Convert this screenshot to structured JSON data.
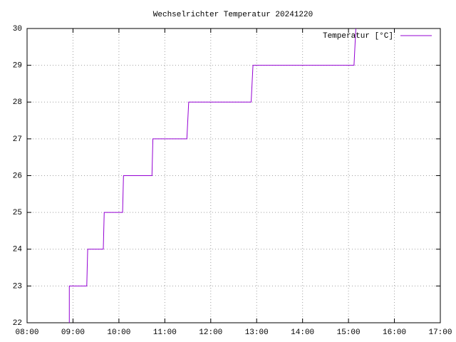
{
  "chart_data": {
    "type": "line",
    "title": "Wechselrichter Temperatur 20241220",
    "x": [
      8.92,
      8.92,
      9.3,
      9.32,
      9.66,
      9.68,
      10.08,
      10.1,
      10.72,
      10.74,
      11.48,
      11.52,
      12.88,
      12.92,
      15.12,
      15.16
    ],
    "series": [
      {
        "name": "Temperatur [°C]",
        "color": "#9400d3",
        "values": [
          22,
          23,
          23,
          24,
          24,
          25,
          25,
          26,
          26,
          27,
          27,
          28,
          28,
          29,
          29,
          30
        ]
      }
    ],
    "xlim": [
      8,
      17
    ],
    "xticks": [
      {
        "value": 8,
        "label": "08:00"
      },
      {
        "value": 9,
        "label": "09:00"
      },
      {
        "value": 10,
        "label": "10:00"
      },
      {
        "value": 11,
        "label": "11:00"
      },
      {
        "value": 12,
        "label": "12:00"
      },
      {
        "value": 13,
        "label": "13:00"
      },
      {
        "value": 14,
        "label": "14:00"
      },
      {
        "value": 15,
        "label": "15:00"
      },
      {
        "value": 16,
        "label": "16:00"
      },
      {
        "value": 17,
        "label": "17:00"
      }
    ],
    "ylim": [
      22,
      30
    ],
    "yticks": [
      22,
      23,
      24,
      25,
      26,
      27,
      28,
      29,
      30
    ],
    "grid": true,
    "legend": "top-right"
  }
}
